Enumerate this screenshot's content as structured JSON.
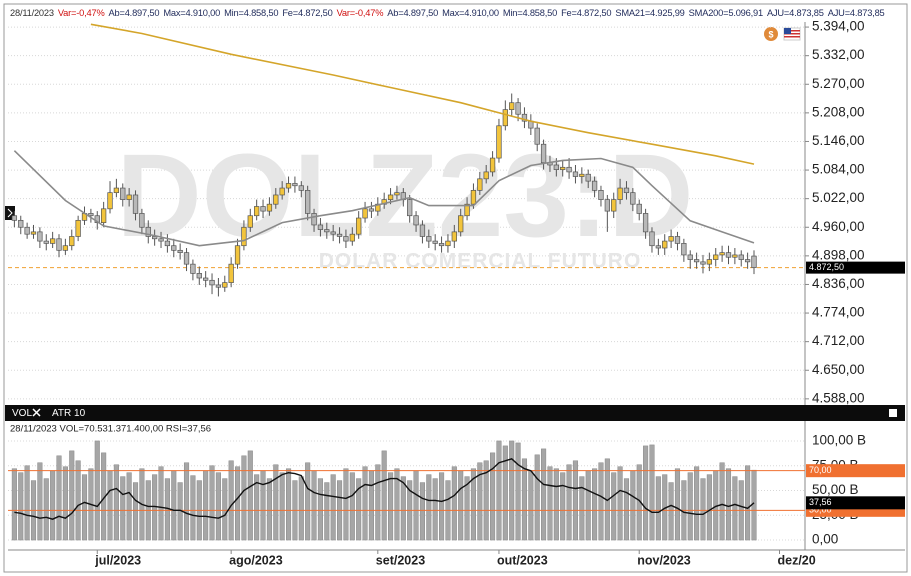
{
  "header": {
    "items": [
      {
        "text": "28/11/2023",
        "color": "#333333"
      },
      {
        "text": "Var=-0,47%",
        "color": "#d01010"
      },
      {
        "text": "Ab=4.897,50",
        "color": "#1f2a5a"
      },
      {
        "text": "Max=4.910,00",
        "color": "#1f2a5a"
      },
      {
        "text": "Min=4.858,50",
        "color": "#1f2a5a"
      },
      {
        "text": "Fe=4.872,50",
        "color": "#1f2a5a"
      },
      {
        "text": "Var=-0,47%",
        "color": "#d01010"
      },
      {
        "text": "Ab=4.897,50",
        "color": "#1f2a5a"
      },
      {
        "text": "Max=4.910,00",
        "color": "#1f2a5a"
      },
      {
        "text": "Min=4.858,50",
        "color": "#1f2a5a"
      },
      {
        "text": "Fe=4.872,50",
        "color": "#1f2a5a"
      },
      {
        "text": "SMA21=4.925,99",
        "color": "#1f2a5a"
      },
      {
        "text": "SMA200=5.096,91",
        "color": "#1f2a5a"
      },
      {
        "text": "AJU=4.873,85",
        "color": "#1f2a5a"
      },
      {
        "text": "AJU=4.873,85",
        "color": "#1f2a5a"
      }
    ]
  },
  "chart_data": {
    "type": "candlestick",
    "watermark": "DOLZ23:D",
    "watermark_subtitle": "DOLAR COMERCIAL FUTURO",
    "up_color": "#f2c43c",
    "down_color": "#b8b8b8",
    "open": [
      4985,
      4975,
      4960,
      4945,
      4950,
      4930,
      4925,
      4935,
      4910,
      4920,
      4940,
      4975,
      4990,
      4985,
      4970,
      5000,
      5035,
      5045,
      5020,
      5030,
      4990,
      4960,
      4940,
      4935,
      4930,
      4920,
      4910,
      4905,
      4880,
      4860,
      4850,
      4845,
      4835,
      4830,
      4840,
      4880,
      4920,
      4960,
      4985,
      5005,
      4995,
      5010,
      5030,
      5045,
      5055,
      5050,
      5040,
      4990,
      4965,
      4955,
      4950,
      4945,
      4940,
      4930,
      4945,
      4980,
      5000,
      4995,
      5010,
      5020,
      5030,
      5035,
      5020,
      4985,
      4965,
      4940,
      4930,
      4925,
      4920,
      4930,
      4950,
      4985,
      5010,
      5040,
      5065,
      5080,
      5110,
      5180,
      5215,
      5230,
      5205,
      5190,
      5175,
      5140,
      5100,
      5095,
      5085,
      5090,
      5080,
      5070,
      5075,
      5060,
      5040,
      5020,
      4995,
      5020,
      5045,
      5035,
      5010,
      4990,
      4950,
      4920,
      4915,
      4930,
      4940,
      4925,
      4900,
      4890,
      4885,
      4880,
      4890,
      4900,
      4905,
      4895,
      4900,
      4890,
      4897.5
    ],
    "high": [
      4995,
      4985,
      4970,
      4965,
      4960,
      4945,
      4950,
      4945,
      4935,
      4955,
      4985,
      5005,
      5000,
      4995,
      5015,
      5060,
      5065,
      5055,
      5045,
      5040,
      5000,
      4975,
      4955,
      4950,
      4945,
      4935,
      4925,
      4915,
      4890,
      4875,
      4865,
      4860,
      4850,
      4855,
      4895,
      4935,
      4975,
      5000,
      5020,
      5020,
      5025,
      5045,
      5060,
      5070,
      5070,
      5060,
      5050,
      5000,
      4980,
      4970,
      4965,
      4960,
      4955,
      4960,
      4995,
      5015,
      5015,
      5025,
      5035,
      5045,
      5050,
      5045,
      5030,
      4995,
      4975,
      4955,
      4945,
      4940,
      4945,
      4965,
      5000,
      5025,
      5055,
      5080,
      5095,
      5125,
      5195,
      5235,
      5250,
      5240,
      5220,
      5205,
      5185,
      5150,
      5115,
      5110,
      5105,
      5110,
      5095,
      5090,
      5085,
      5070,
      5050,
      5030,
      5035,
      5065,
      5060,
      5045,
      5020,
      5000,
      4960,
      4935,
      4945,
      4955,
      4950,
      4935,
      4910,
      4905,
      4900,
      4905,
      4915,
      4920,
      4920,
      4915,
      4910,
      4905,
      4910
    ],
    "low": [
      4960,
      4945,
      4935,
      4935,
      4915,
      4910,
      4915,
      4895,
      4900,
      4910,
      4930,
      4965,
      4970,
      4955,
      4960,
      4990,
      5025,
      5005,
      5005,
      4975,
      4945,
      4925,
      4920,
      4915,
      4905,
      4895,
      4890,
      4865,
      4845,
      4835,
      4830,
      4815,
      4810,
      4820,
      4830,
      4870,
      4910,
      4950,
      4975,
      4980,
      4985,
      5000,
      5020,
      5035,
      5035,
      5025,
      4975,
      4950,
      4940,
      4935,
      4930,
      4925,
      4915,
      4920,
      4935,
      4970,
      4980,
      4985,
      5000,
      5010,
      5020,
      5005,
      4970,
      4950,
      4925,
      4915,
      4910,
      4905,
      4905,
      4915,
      4940,
      4975,
      5000,
      5030,
      5055,
      5070,
      5100,
      5170,
      5200,
      5190,
      5175,
      5160,
      5125,
      5085,
      5080,
      5070,
      5070,
      5065,
      5055,
      5055,
      5045,
      5025,
      5005,
      4950,
      4980,
      5010,
      5020,
      4995,
      4975,
      4935,
      4905,
      4900,
      4900,
      4915,
      4910,
      4885,
      4870,
      4870,
      4860,
      4865,
      4875,
      4885,
      4880,
      4880,
      4875,
      4870,
      4858.5
    ],
    "close": [
      4975,
      4960,
      4945,
      4950,
      4930,
      4925,
      4935,
      4910,
      4920,
      4940,
      4975,
      4990,
      4985,
      4970,
      5000,
      5035,
      5045,
      5020,
      5030,
      4990,
      4960,
      4940,
      4935,
      4930,
      4920,
      4910,
      4905,
      4880,
      4860,
      4850,
      4845,
      4835,
      4830,
      4840,
      4880,
      4920,
      4960,
      4985,
      5005,
      4995,
      5010,
      5030,
      5045,
      5055,
      5050,
      5040,
      4990,
      4965,
      4955,
      4950,
      4945,
      4940,
      4930,
      4945,
      4980,
      5000,
      4995,
      5010,
      5020,
      5030,
      5035,
      5020,
      4985,
      4965,
      4940,
      4930,
      4925,
      4920,
      4930,
      4950,
      4985,
      5010,
      5040,
      5065,
      5080,
      5110,
      5180,
      5215,
      5230,
      5205,
      5190,
      5175,
      5140,
      5100,
      5095,
      5085,
      5090,
      5080,
      5070,
      5075,
      5060,
      5040,
      5020,
      4995,
      5020,
      5045,
      5035,
      5010,
      4990,
      4950,
      4920,
      4915,
      4930,
      4940,
      4925,
      4900,
      4890,
      4885,
      4880,
      4890,
      4900,
      4905,
      4895,
      4900,
      4890,
      4885,
      4872.5
    ],
    "xlim": [
      -1,
      124
    ],
    "x_labels": [
      {
        "index": 13,
        "label": "jul/2023"
      },
      {
        "index": 34,
        "label": "ago/2023"
      },
      {
        "index": 57,
        "label": "set/2023"
      },
      {
        "index": 76,
        "label": "out/2023"
      },
      {
        "index": 98,
        "label": "nov/2023"
      },
      {
        "index": 120,
        "label": "dez/20"
      }
    ],
    "ylim": [
      4579,
      5405
    ],
    "yticks": [
      {
        "value": 4588,
        "label": "4.588,00"
      },
      {
        "value": 4650,
        "label": "4.650,00"
      },
      {
        "value": 4712,
        "label": "4.712,00"
      },
      {
        "value": 4774,
        "label": "4.774,00"
      },
      {
        "value": 4836,
        "label": "4.836,00"
      },
      {
        "value": 4898,
        "label": "4.898,00"
      },
      {
        "value": 4960,
        "label": "4.960,00"
      },
      {
        "value": 5022,
        "label": "5.022,00"
      },
      {
        "value": 5084,
        "label": "5.084,00"
      },
      {
        "value": 5146,
        "label": "5.146,00"
      },
      {
        "value": 5208,
        "label": "5.208,00"
      },
      {
        "value": 5270,
        "label": "5.270,00"
      },
      {
        "value": 5332,
        "label": "5.332,00"
      },
      {
        "value": 5394,
        "label": "5.394,00"
      }
    ],
    "grid": true,
    "last_price": {
      "value": 4872.5,
      "label": "4.872,50"
    },
    "series": [
      {
        "color": "#8a8a8a",
        "x": [
          0,
          8,
          14,
          22,
          29,
          36,
          42,
          48,
          53,
          62,
          65,
          72,
          76,
          81,
          86,
          92,
          97,
          100,
          106,
          111,
          116
        ],
        "values": [
          5126,
          5018,
          4963,
          4942,
          4920,
          4931,
          4970,
          4985,
          4996,
          5024,
          5007,
          5007,
          5061,
          5094,
          5105,
          5109,
          5090,
          5050,
          4974,
          4950,
          4925.99
        ]
      },
      {
        "color": "#d4a52a",
        "x": [
          12,
          20,
          34,
          50,
          60,
          70,
          81,
          90,
          100,
          110,
          116
        ],
        "values": [
          5400,
          5380,
          5335,
          5290,
          5260,
          5230,
          5190,
          5165,
          5140,
          5115,
          5096.91
        ]
      }
    ]
  },
  "lower_panel": {
    "tabs": [
      "VOL",
      "ATR 10"
    ],
    "info": "28/11/2023  VOL=70.531.371.400,00  RSI=37,56",
    "ylim": [
      -5,
      106
    ],
    "yticks": [
      {
        "value": 0,
        "label": "0,00"
      },
      {
        "value": 25,
        "label": "25,00 B"
      },
      {
        "value": 50,
        "label": "50,00 B"
      },
      {
        "value": 75,
        "label": "75,00 B"
      },
      {
        "value": 100,
        "label": "100,00 B"
      }
    ],
    "volume": {
      "color": "#a6a6a6",
      "values": [
        72,
        68,
        75,
        60,
        78,
        62,
        70,
        85,
        74,
        90,
        80,
        66,
        72,
        100,
        88,
        70,
        76,
        64,
        68,
        58,
        72,
        60,
        66,
        74,
        62,
        70,
        58,
        78,
        65,
        60,
        70,
        75,
        68,
        62,
        80,
        74,
        85,
        90,
        66,
        70,
        62,
        76,
        68,
        72,
        60,
        64,
        78,
        70,
        62,
        58,
        66,
        60,
        72,
        68,
        62,
        74,
        70,
        76,
        90,
        68,
        72,
        64,
        60,
        70,
        58,
        66,
        62,
        68,
        60,
        74,
        70,
        64,
        72,
        78,
        80,
        88,
        100,
        95,
        100,
        98,
        82,
        70,
        86,
        92,
        74,
        72,
        68,
        76,
        80,
        64,
        70,
        72,
        78,
        82,
        68,
        74,
        62,
        70,
        76,
        95,
        96,
        64,
        66,
        58,
        72,
        60,
        68,
        74,
        62,
        66,
        70,
        78,
        72,
        64,
        60,
        75,
        70.53
      ]
    },
    "rsi": {
      "color": "#111111",
      "level_color": "#f07030",
      "values": [
        28,
        27,
        25,
        24,
        22,
        23,
        21,
        24,
        22,
        27,
        35,
        38,
        36,
        34,
        42,
        50,
        52,
        46,
        48,
        40,
        36,
        34,
        34,
        33,
        32,
        30,
        30,
        27,
        25,
        24,
        24,
        23,
        22,
        25,
        35,
        42,
        50,
        54,
        58,
        56,
        58,
        62,
        66,
        68,
        67,
        65,
        52,
        48,
        46,
        45,
        44,
        43,
        42,
        45,
        52,
        56,
        55,
        58,
        60,
        62,
        62,
        58,
        50,
        46,
        42,
        40,
        40,
        39,
        41,
        45,
        52,
        56,
        62,
        66,
        68,
        72,
        78,
        80,
        82,
        76,
        72,
        70,
        62,
        56,
        55,
        54,
        55,
        53,
        52,
        53,
        50,
        47,
        44,
        40,
        45,
        50,
        48,
        44,
        40,
        32,
        28,
        28,
        32,
        35,
        32,
        28,
        27,
        26,
        26,
        30,
        34,
        36,
        34,
        36,
        34,
        32,
        37.56
      ],
      "levels": [
        {
          "value": 70,
          "label": "70,00"
        },
        {
          "value": 30,
          "label": "30,00"
        }
      ],
      "last": {
        "value": 37.56,
        "label": "37,56"
      }
    }
  }
}
